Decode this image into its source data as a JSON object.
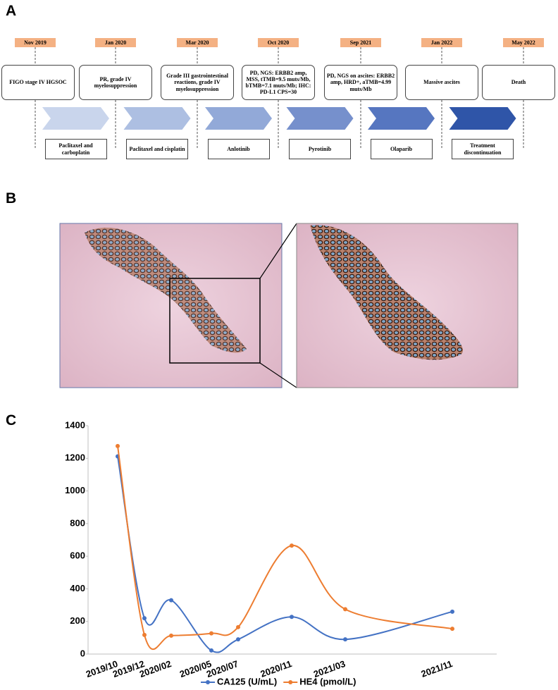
{
  "panel_labels": [
    "A",
    "B",
    "C"
  ],
  "timeline": {
    "dates": [
      "Nov 2019",
      "Jan 2020",
      "Mar 2020",
      "Oct 2020",
      "Sep 2021",
      "Jan 2022",
      "May 2022"
    ],
    "events": [
      "FIGO stage IV HGSOC",
      "PR, grade IV myelosuppression",
      "Grade III gastrointestinal reactions, grade IV myelosuppression",
      "PD, NGS: ERBB2 amp, MSS, tTMB=9.5 muts/Mb, bTMB=7.1 muts/Mb; IHC: PD-L1 CPS=30",
      "PD, NGS on ascites: ERBB2 amp, HRD+, aTMB=4.99 muts/Mb",
      "Massive ascites",
      "Death"
    ],
    "treatments": [
      "Paclitaxel and carboplatin",
      "Paclitaxel and cisplatin",
      "Anlotinib",
      "Pyrotinib",
      "Olaparib",
      "Treatment discontinuation"
    ]
  },
  "chart_data": {
    "type": "line",
    "x": [
      "2019/10",
      "2019/12",
      "2020/02",
      "2020/05",
      "2020/07",
      "2020/11",
      "2021/03",
      "2021/11"
    ],
    "series": [
      {
        "name": "CA125 (U/mL)",
        "color": "#4472c4",
        "values": [
          1212,
          220,
          330,
          22,
          90,
          228,
          90,
          260
        ]
      },
      {
        "name": "HE4 (pmol/L)",
        "color": "#ed7d31",
        "values": [
          1275,
          117,
          113,
          127,
          165,
          665,
          275,
          155
        ]
      }
    ],
    "ylim": [
      0,
      1400
    ],
    "yticks": [
      0,
      200,
      400,
      600,
      800,
      1000,
      1200,
      1400
    ],
    "grid": false,
    "smooth": true,
    "legend": "bottom"
  }
}
